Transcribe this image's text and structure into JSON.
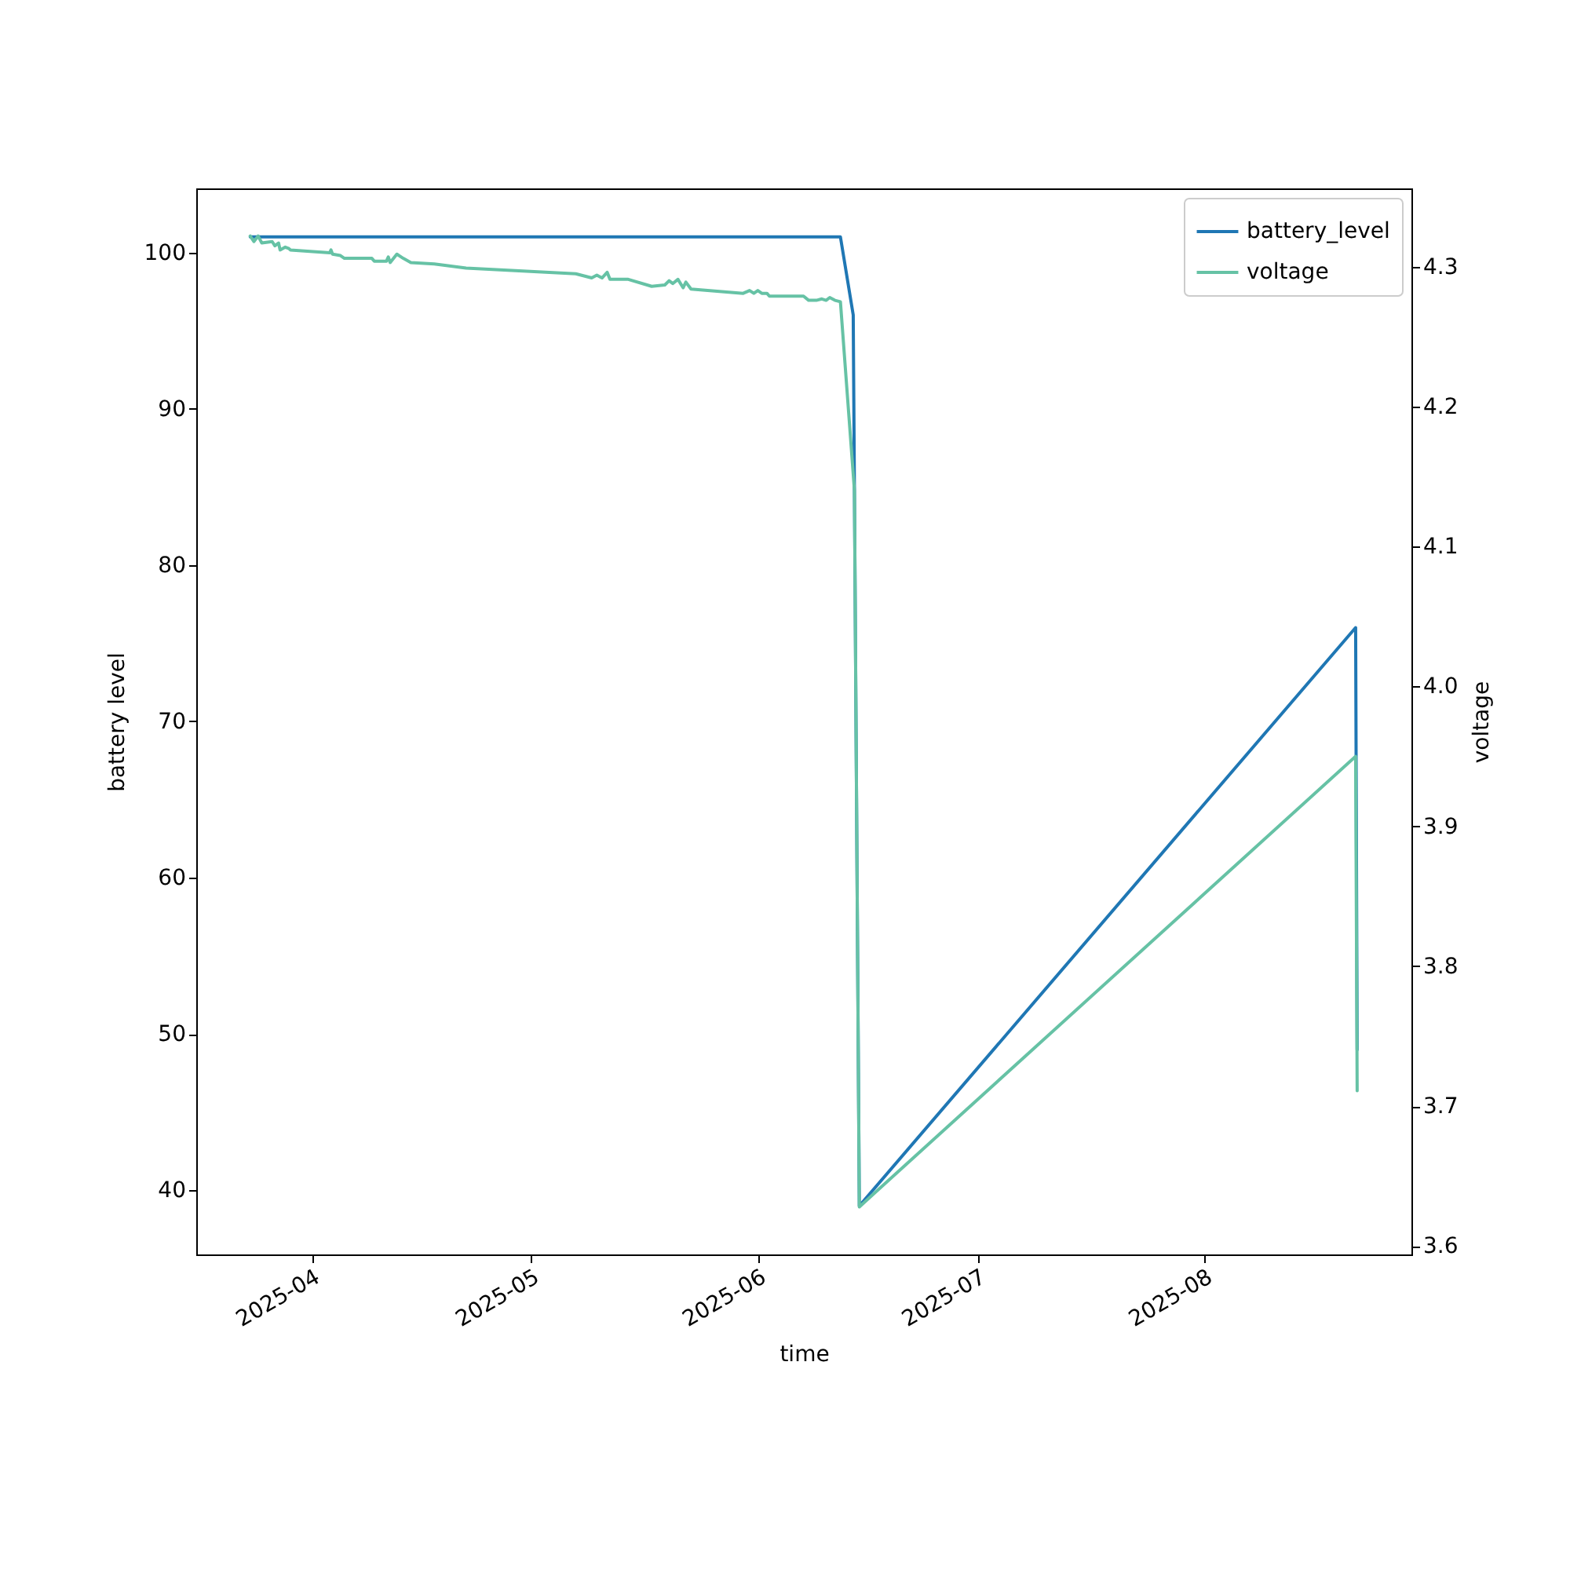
{
  "chart_data": {
    "type": "line",
    "xlabel": "time",
    "ylabel": "battery level",
    "y2label": "voltage",
    "xlim": [
      "2025-03-16T05:00",
      "2025-08-29T07:00"
    ],
    "xticks": [
      "2025-04",
      "2025-05",
      "2025-06",
      "2025-07",
      "2025-08"
    ],
    "ylim": [
      35.9,
      104.1
    ],
    "yticks": [
      40,
      50,
      60,
      70,
      80,
      90,
      100
    ],
    "y2lim": [
      3.594,
      4.356
    ],
    "y2ticks": [
      3.6,
      3.7,
      3.8,
      3.9,
      {
        "value": 4.0,
        "label": "4.0"
      },
      4.1,
      4.2,
      4.3
    ],
    "legend": "top right",
    "grid": false,
    "line_style": "solid",
    "series": [
      {
        "name": "battery_level",
        "color": "#1f77b4",
        "x": [
          "2025-03-23T14:00",
          "2025-06-12T06:00",
          "2025-06-14T00:00",
          "2025-06-14T20:00",
          "2025-08-21T16:00",
          "2025-08-21T21:00"
        ],
        "values": [
          101,
          101,
          96,
          39,
          76,
          49
        ]
      },
      {
        "name": "voltage",
        "color": "#66c2a5",
        "axis": "y2",
        "x": [
          "2025-03-23T14:00",
          "2025-03-24T02:00",
          "2025-03-24T16:00",
          "2025-03-25T04:00",
          "2025-03-26T14:00",
          "2025-03-26T23:00",
          "2025-03-27T11:00",
          "2025-03-27T16:00",
          "2025-03-28T09:00",
          "2025-03-28T21:00",
          "2025-03-29T02:00",
          "2025-04-03T11:00",
          "2025-04-03T15:00",
          "2025-04-03T20:00",
          "2025-04-04T22:00",
          "2025-04-05T11:00",
          "2025-04-07T18:00",
          "2025-04-08T11:00",
          "2025-04-09T05:00",
          "2025-04-09T13:00",
          "2025-04-11T05:00",
          "2025-04-11T11:00",
          "2025-04-11T17:00",
          "2025-04-12T15:00",
          "2025-04-13T12:00",
          "2025-04-14T13:00",
          "2025-04-17T18:00",
          "2025-04-22T02:00",
          "2025-05-07T02:00",
          "2025-05-09T06:00",
          "2025-05-09T23:00",
          "2025-05-10T16:00",
          "2025-05-11T09:00",
          "2025-05-11T18:00",
          "2025-05-14T06:00",
          "2025-05-17T11:00",
          "2025-05-19T06:00",
          "2025-05-19T20:00",
          "2025-05-20T08:00",
          "2025-05-21T01:00",
          "2025-05-21T18:00",
          "2025-05-22T03:00",
          "2025-05-22T20:00",
          "2025-05-29T23:00",
          "2025-05-30T20:00",
          "2025-05-31T10:00",
          "2025-05-31T23:00",
          "2025-06-01T12:00",
          "2025-06-02T05:00",
          "2025-06-02T13:00",
          "2025-06-07T05:00",
          "2025-06-07T22:00",
          "2025-06-08T23:00",
          "2025-06-09T17:00",
          "2025-06-10T07:00",
          "2025-06-10T19:00",
          "2025-06-11T12:00",
          "2025-06-12T06:00",
          "2025-06-14T04:00",
          "2025-06-14T20:00",
          "2025-08-21T16:00",
          "2025-08-21T21:00"
        ],
        "values": [
          4.322,
          4.318,
          4.322,
          4.317,
          4.318,
          4.315,
          4.317,
          4.312,
          4.314,
          4.313,
          4.312,
          4.31,
          4.312,
          4.309,
          4.308,
          4.306,
          4.306,
          4.306,
          4.306,
          4.304,
          4.304,
          4.307,
          4.303,
          4.309,
          4.306,
          4.303,
          4.302,
          4.299,
          4.295,
          4.292,
          4.294,
          4.292,
          4.296,
          4.291,
          4.291,
          4.286,
          4.287,
          4.29,
          4.288,
          4.291,
          4.285,
          4.289,
          4.284,
          4.281,
          4.283,
          4.281,
          4.283,
          4.281,
          4.281,
          4.279,
          4.279,
          4.276,
          4.276,
          4.277,
          4.276,
          4.278,
          4.276,
          4.275,
          4.14,
          3.628,
          3.95,
          3.711
        ]
      }
    ]
  }
}
